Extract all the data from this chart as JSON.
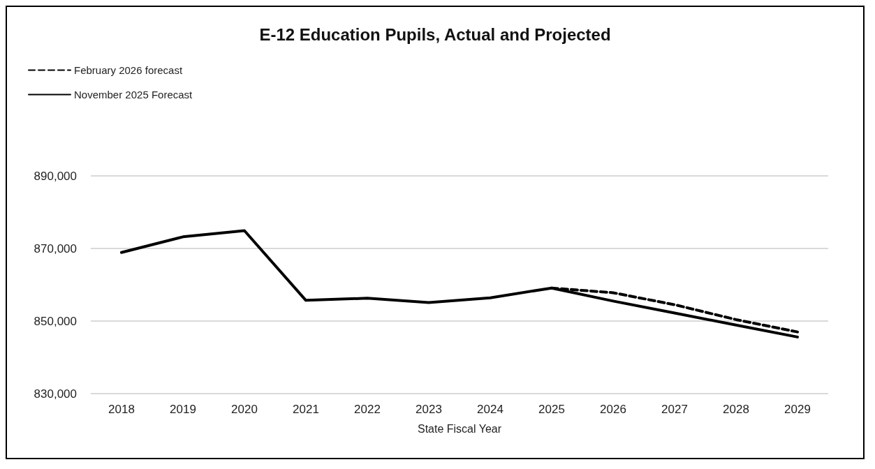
{
  "chart_data": {
    "type": "line",
    "title": "E-12 Education Pupils, Actual and Projected",
    "xlabel": "State Fiscal Year",
    "categories": [
      "2018",
      "2019",
      "2020",
      "2021",
      "2022",
      "2023",
      "2024",
      "2025",
      "2026",
      "2027",
      "2028",
      "2029"
    ],
    "series": [
      {
        "name": "February 2026 forecast",
        "color": "#000000",
        "line_style": "dashed",
        "values": [
          null,
          null,
          null,
          null,
          null,
          null,
          null,
          859100,
          857800,
          854500,
          850400,
          847000
        ]
      },
      {
        "name": "November 2025 Forecast",
        "color": "#000000",
        "line_style": "solid",
        "values": [
          868900,
          873200,
          874900,
          855700,
          856300,
          855100,
          856400,
          859100,
          855500,
          852200,
          848900,
          845600
        ]
      }
    ],
    "ylim": [
      830000,
      890000
    ],
    "yticks": [
      {
        "value": 830000,
        "label": "830,000"
      },
      {
        "value": 850000,
        "label": "850,000"
      },
      {
        "value": 870000,
        "label": "870,000"
      },
      {
        "value": 890000,
        "label": "890,000"
      }
    ],
    "grid": "y",
    "legend": "top left",
    "marker": "none"
  }
}
